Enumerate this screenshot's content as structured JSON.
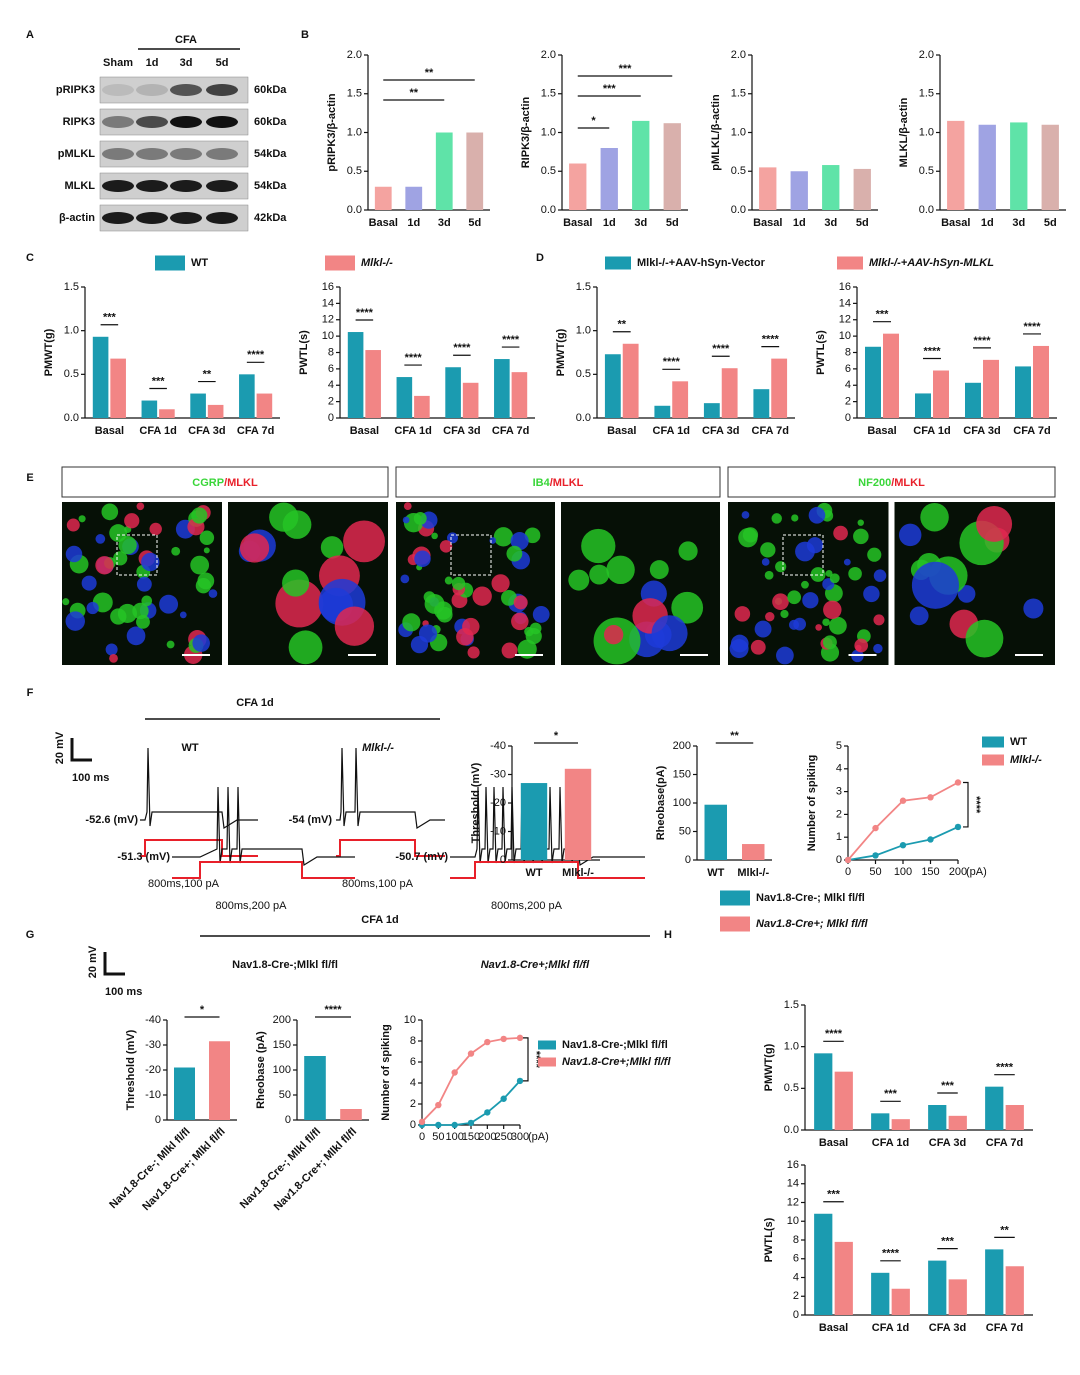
{
  "panel_labels": [
    "A",
    "B",
    "C",
    "D",
    "E",
    "F",
    "G",
    "H"
  ],
  "blot": {
    "groups": [
      "Sham",
      "CFA"
    ],
    "lanes": [
      "1d",
      "3d",
      "5d"
    ],
    "rows": [
      "pRIPK3",
      "RIPK3",
      "pMLKL",
      "MLKL",
      "β-actin"
    ],
    "sizes": [
      "60kDa",
      "60kDa",
      "54kDa",
      "54kDa",
      "42kDa"
    ]
  },
  "staining": [
    {
      "marker": "CGRP",
      "target": "/MLKL"
    },
    {
      "marker": "IB4",
      "target": "/MLKL"
    },
    {
      "marker": "NF200",
      "target": "/MLKL"
    }
  ],
  "traces": {
    "f": {
      "title": "CFA 1d",
      "scale_v": "20 mV",
      "scale_t": "100 ms",
      "cells": [
        {
          "name": "WT",
          "rest": "-52.6 (mV)",
          "stim": "800ms,100 pA"
        },
        {
          "name": "Mlkl-/-",
          "rest": "-54 (mV)",
          "stim": "800ms,100 pA"
        }
      ]
    },
    "g": {
      "title": "CFA 1d",
      "scale_v": "20 mV",
      "scale_t": "100 ms",
      "cells": [
        {
          "name": "Nav1.8-Cre-;Mlkl fl/fl",
          "rest": "-51.3 (mV)",
          "stim": "800ms,200 pA"
        },
        {
          "name": "Nav1.8-Cre+;Mlkl fl/fl",
          "rest": "-50.7 (mV)",
          "stim": "800ms,200 pA"
        }
      ]
    }
  },
  "chart_data": [
    {
      "type": "bar",
      "ylabel": "pRIPK3/β-actin",
      "categories": [
        "Basal",
        "1d",
        "3d",
        "5d"
      ],
      "values": [
        0.3,
        0.3,
        1.0,
        1.0
      ],
      "colors": [
        "#f4a3a0",
        "#9fa3e3",
        "#5fe3a8",
        "#d9b0ac"
      ],
      "ylim": [
        0,
        2
      ],
      "yticks": [
        {
          "value": 0,
          "label": "0.0"
        },
        0.5,
        {
          "value": 1,
          "label": "1.0"
        },
        1.5,
        {
          "value": 2,
          "label": "2.0"
        }
      ],
      "significance": [
        "**",
        "**"
      ]
    },
    {
      "type": "bar",
      "ylabel": "RIPK3/β-actin",
      "categories": [
        "Basal",
        "1d",
        "3d",
        "5d"
      ],
      "values": [
        0.6,
        0.8,
        1.15,
        1.12
      ],
      "colors": [
        "#f4a3a0",
        "#9fa3e3",
        "#5fe3a8",
        "#d9b0ac"
      ],
      "ylim": [
        0,
        2
      ],
      "yticks": [
        {
          "value": 0,
          "label": "0.0"
        },
        0.5,
        {
          "value": 1,
          "label": "1.0"
        },
        1.5,
        {
          "value": 2,
          "label": "2.0"
        }
      ],
      "significance": [
        "***",
        "***",
        "*"
      ]
    },
    {
      "type": "bar",
      "ylabel": "pMLKL/β-actin",
      "categories": [
        "Basal",
        "1d",
        "3d",
        "5d"
      ],
      "values": [
        0.55,
        0.5,
        0.58,
        0.53
      ],
      "colors": [
        "#f4a3a0",
        "#9fa3e3",
        "#5fe3a8",
        "#d9b0ac"
      ],
      "ylim": [
        0,
        2
      ],
      "yticks": [
        {
          "value": 0,
          "label": "0.0"
        },
        0.5,
        {
          "value": 1,
          "label": "1.0"
        },
        1.5,
        {
          "value": 2,
          "label": "2.0"
        }
      ]
    },
    {
      "type": "bar",
      "ylabel": "MLKL/β-actin",
      "categories": [
        "Basal",
        "1d",
        "3d",
        "5d"
      ],
      "values": [
        1.15,
        1.1,
        1.13,
        1.1
      ],
      "colors": [
        "#f4a3a0",
        "#9fa3e3",
        "#5fe3a8",
        "#d9b0ac"
      ],
      "ylim": [
        0,
        2
      ],
      "yticks": [
        {
          "value": 0,
          "label": "0.0"
        },
        0.5,
        {
          "value": 1,
          "label": "1.0"
        },
        1.5,
        {
          "value": 2,
          "label": "2.0"
        }
      ]
    },
    {
      "type": "bar",
      "ylabel": "PMWT(g)",
      "categories": [
        "Basal",
        "CFA 1d",
        "CFA 3d",
        "CFA 7d"
      ],
      "series": [
        {
          "name": "WT",
          "color": "#1b9bb0",
          "values": [
            0.93,
            0.2,
            0.28,
            0.5
          ]
        },
        {
          "name": "Mlkl-/-",
          "color": "#f28585",
          "values": [
            0.68,
            0.1,
            0.15,
            0.28
          ]
        }
      ],
      "ylim": [
        0,
        1.5
      ],
      "yticks": [
        {
          "value": 0,
          "label": "0.0"
        },
        0.5,
        {
          "value": 1,
          "label": "1.0"
        },
        1.5
      ],
      "significance": [
        "***",
        "***",
        "**",
        "****"
      ]
    },
    {
      "type": "bar",
      "ylabel": "PWTL(s)",
      "categories": [
        "Basal",
        "CFA 1d",
        "CFA 3d",
        "CFA 7d"
      ],
      "series": [
        {
          "color": "#1b9bb0",
          "values": [
            10.5,
            5.0,
            6.2,
            7.2
          ]
        },
        {
          "color": "#f28585",
          "values": [
            8.3,
            2.7,
            4.3,
            5.6
          ]
        }
      ],
      "ylim": [
        0,
        16
      ],
      "yticks": [
        0,
        2,
        4,
        6,
        8,
        10,
        12,
        14,
        16
      ],
      "significance": [
        "****",
        "****",
        "****",
        "****"
      ]
    },
    {
      "type": "bar",
      "ylabel": "PMWT(g)",
      "categories": [
        "Basal",
        "CFA 1d",
        "CFA 3d",
        "CFA 7d"
      ],
      "series": [
        {
          "name": "Mlkl-/-+AAV-hSyn-Vector",
          "color": "#1b9bb0",
          "values": [
            0.73,
            0.14,
            0.17,
            0.33
          ]
        },
        {
          "name": "Mlkl-/-+AAV-hSyn-MLKL",
          "color": "#f28585",
          "values": [
            0.85,
            0.42,
            0.57,
            0.68
          ]
        }
      ],
      "ylim": [
        0,
        1.5
      ],
      "yticks": [
        {
          "value": 0,
          "label": "0.0"
        },
        0.5,
        {
          "value": 1,
          "label": "1.0"
        },
        1.5
      ],
      "significance": [
        "**",
        "****",
        "****",
        "****"
      ]
    },
    {
      "type": "bar",
      "ylabel": "PWTL(s)",
      "categories": [
        "Basal",
        "CFA 1d",
        "CFA 3d",
        "CFA 7d"
      ],
      "series": [
        {
          "color": "#1b9bb0",
          "values": [
            8.7,
            3.0,
            4.3,
            6.3
          ]
        },
        {
          "color": "#f28585",
          "values": [
            10.3,
            5.8,
            7.1,
            8.8
          ]
        }
      ],
      "ylim": [
        0,
        16
      ],
      "yticks": [
        0,
        2,
        4,
        6,
        8,
        10,
        12,
        14,
        16
      ],
      "significance": [
        "***",
        "****",
        "****",
        "****"
      ]
    },
    {
      "type": "bar",
      "ylabel": "Threshold (mV)",
      "categories": [
        "WT",
        "Mlkl-/-"
      ],
      "values": [
        -27,
        -32
      ],
      "colors": [
        "#1b9bb0",
        "#f28585"
      ],
      "ylim": [
        0,
        -40
      ],
      "yticks": [
        0,
        -10,
        -20,
        -30,
        -40
      ],
      "significance": [
        "*"
      ]
    },
    {
      "type": "bar",
      "ylabel": "Rheobase(pA)",
      "categories": [
        "WT",
        "Mlkl-/-"
      ],
      "values": [
        97,
        28
      ],
      "colors": [
        "#1b9bb0",
        "#f28585"
      ],
      "ylim": [
        0,
        200
      ],
      "yticks": [
        0,
        50,
        100,
        150,
        200
      ],
      "significance": [
        "**"
      ]
    },
    {
      "type": "line",
      "ylabel": "Number of spiking",
      "x": [
        0,
        50,
        100,
        150,
        200
      ],
      "x_unit": "(pA)",
      "series": [
        {
          "name": "WT",
          "color": "#1b9bb0",
          "values": [
            0,
            0.2,
            0.65,
            0.9,
            1.45
          ]
        },
        {
          "name": "Mlkl-/-",
          "color": "#f28585",
          "values": [
            0,
            1.4,
            2.6,
            2.75,
            3.4
          ]
        }
      ],
      "xlim": [
        0,
        200
      ],
      "xticks": [
        0,
        50,
        100,
        150,
        200
      ],
      "ylim": [
        0,
        5
      ],
      "yticks": [
        0,
        1,
        2,
        3,
        4,
        5
      ],
      "significance": [
        "****"
      ]
    },
    {
      "type": "bar",
      "ylabel": "Threshold (mV)",
      "categories": [
        "Nav1.8-Cre-; Mlkl fl/fl",
        "Nav1.8-Cre+; Mlkl fl/fl"
      ],
      "values": [
        -21,
        -31.5
      ],
      "colors": [
        "#1b9bb0",
        "#f28585"
      ],
      "ylim": [
        0,
        -40
      ],
      "yticks": [
        0,
        -10,
        -20,
        -30,
        -40
      ],
      "significance": [
        "*"
      ]
    },
    {
      "type": "bar",
      "ylabel": "Rheobase (pA)",
      "categories": [
        "Nav1.8-Cre-; Mlkl fl/fl",
        "Nav1.8-Cre+; Mlkl fl/fl"
      ],
      "values": [
        128,
        22
      ],
      "colors": [
        "#1b9bb0",
        "#f28585"
      ],
      "ylim": [
        0,
        200
      ],
      "yticks": [
        0,
        50,
        100,
        150,
        200
      ],
      "significance": [
        "****"
      ]
    },
    {
      "type": "line",
      "ylabel": "Number of spiking",
      "x": [
        0,
        50,
        100,
        150,
        200,
        250,
        300
      ],
      "x_unit": "(pA)",
      "series": [
        {
          "name": "Nav1.8-Cre-;Mlkl fl/fl",
          "color": "#1b9bb0",
          "values": [
            0,
            0,
            0,
            0.2,
            1.2,
            2.5,
            4.2
          ]
        },
        {
          "name": "Nav1.8-Cre+;Mlkl fl/fl",
          "color": "#f28585",
          "values": [
            0.3,
            1.9,
            5.0,
            6.8,
            7.9,
            8.2,
            8.3
          ]
        }
      ],
      "xlim": [
        0,
        300
      ],
      "xticks": [
        0,
        50,
        100,
        150,
        200,
        250,
        300
      ],
      "ylim": [
        0,
        10
      ],
      "yticks": [
        0,
        2,
        4,
        6,
        8,
        10
      ],
      "significance": [
        "****"
      ]
    },
    {
      "type": "bar",
      "ylabel": "PMWT(g)",
      "categories": [
        "Basal",
        "CFA 1d",
        "CFA 3d",
        "CFA 7d"
      ],
      "series": [
        {
          "name": "Nav1.8-Cre-; Mlkl fl/fl",
          "color": "#1b9bb0",
          "values": [
            0.92,
            0.2,
            0.3,
            0.52
          ]
        },
        {
          "name": "Nav1.8-Cre+; Mlkl fl/fl",
          "color": "#f28585",
          "values": [
            0.7,
            0.13,
            0.17,
            0.3
          ]
        }
      ],
      "ylim": [
        0,
        1.5
      ],
      "yticks": [
        {
          "value": 0,
          "label": "0.0"
        },
        0.5,
        {
          "value": 1,
          "label": "1.0"
        },
        1.5
      ],
      "significance": [
        "****",
        "***",
        "***",
        "****"
      ]
    },
    {
      "type": "bar",
      "ylabel": "PWTL(s)",
      "categories": [
        "Basal",
        "CFA 1d",
        "CFA 3d",
        "CFA 7d"
      ],
      "series": [
        {
          "color": "#1b9bb0",
          "values": [
            10.8,
            4.5,
            5.8,
            7.0
          ]
        },
        {
          "color": "#f28585",
          "values": [
            7.8,
            2.8,
            3.8,
            5.2
          ]
        }
      ],
      "ylim": [
        0,
        16
      ],
      "yticks": [
        0,
        2,
        4,
        6,
        8,
        10,
        12,
        14,
        16
      ],
      "significance": [
        "***",
        "****",
        "***",
        "**"
      ]
    }
  ]
}
